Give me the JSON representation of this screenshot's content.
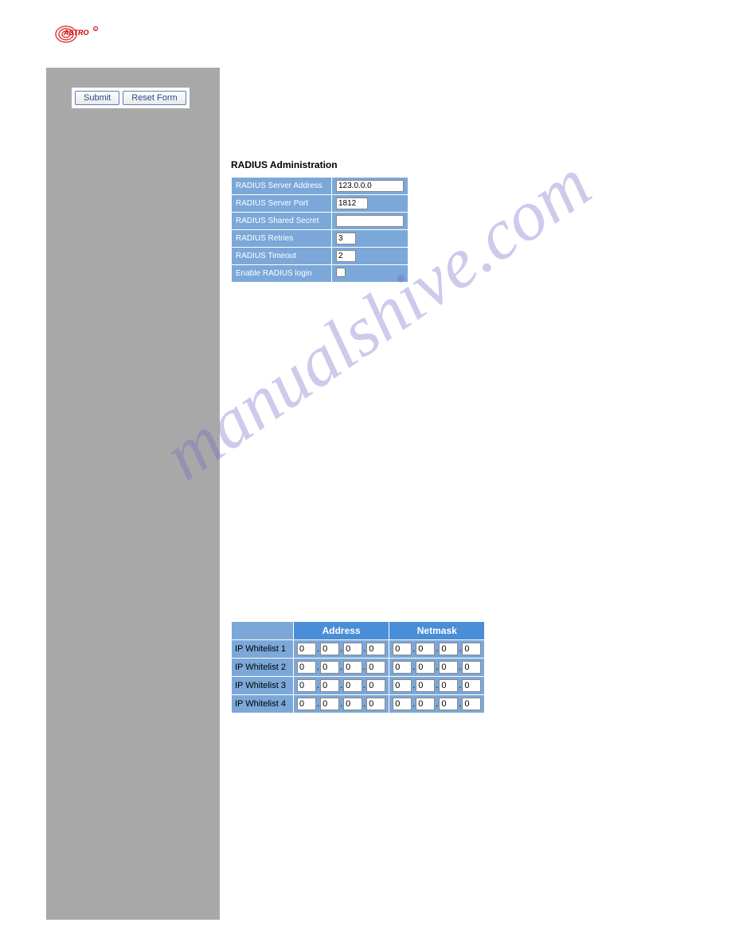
{
  "logo": {
    "text": "ASTRO",
    "primary_color": "#cc0000",
    "accent_color": "#e04040"
  },
  "sidebar": {
    "bg_color": "#a8a8a8",
    "buttons": {
      "submit": "Submit",
      "reset": "Reset Form"
    }
  },
  "radius": {
    "title": "RADIUS Administration",
    "rows": [
      {
        "label": "RADIUS Server Address",
        "value": "123.0.0.0",
        "class": "wide"
      },
      {
        "label": "RADIUS Server Port",
        "value": "1812",
        "class": "med"
      },
      {
        "label": "RADIUS Shared Secret",
        "value": "",
        "class": "wide"
      },
      {
        "label": "RADIUS Retries",
        "value": "3",
        "class": "small"
      },
      {
        "label": "RADIUS Timeout",
        "value": "2",
        "class": "small"
      },
      {
        "label": "Enable RADIUS login",
        "checkbox": true,
        "checked": false
      }
    ],
    "header_bg": "#7ba8d9"
  },
  "whitelist": {
    "headers": [
      "",
      "Address",
      "Netmask"
    ],
    "rows": [
      {
        "label": "IP Whitelist 1",
        "address": [
          "0",
          "0",
          "0",
          "0"
        ],
        "netmask": [
          "0",
          "0",
          "0",
          "0"
        ]
      },
      {
        "label": "IP Whitelist 2",
        "address": [
          "0",
          "0",
          "0",
          "0"
        ],
        "netmask": [
          "0",
          "0",
          "0",
          "0"
        ]
      },
      {
        "label": "IP Whitelist 3",
        "address": [
          "0",
          "0",
          "0",
          "0"
        ],
        "netmask": [
          "0",
          "0",
          "0",
          "0"
        ]
      },
      {
        "label": "IP Whitelist 4",
        "address": [
          "0",
          "0",
          "0",
          "0"
        ],
        "netmask": [
          "0",
          "0",
          "0",
          "0"
        ]
      }
    ],
    "header_bg": "#4a8ed8",
    "cell_bg": "#7ba8d9"
  },
  "watermark": "manualshive.com"
}
